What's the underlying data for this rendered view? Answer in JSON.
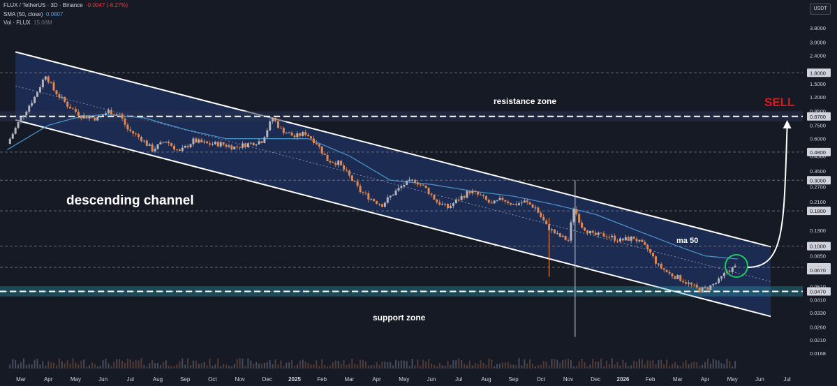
{
  "header": {
    "symbol_line": "FLUX / TetherUS · 3D · Binance",
    "change": "-0.0047 (-6.27%)",
    "sma_label": "SMA (50, close)",
    "sma_value": "0.0807",
    "vol_label": "Vol · FLUX",
    "vol_value": "15.08M"
  },
  "currency": "USDT",
  "colors": {
    "background": "#161a25",
    "channel_fill": "#1e3160",
    "channel_line": "#ffffff",
    "up_candle": "#b2b5be",
    "down_candle": "#e4864d",
    "ma_line": "#4a90c8",
    "sell": "#e0161b",
    "support_band": "#2aa3b5",
    "circle": "#22c55e",
    "price_tag": "#d1d4dc"
  },
  "chart_data": {
    "type": "candlestick",
    "title": "FLUX / TetherUS · 3D · Binance",
    "price_axis": {
      "scale": "log",
      "range": [
        0.013,
        4.8
      ],
      "tick_labels": [
        "3.8000",
        "3.0000",
        "2.4000",
        "1.8000",
        "1.5000",
        "1.2000",
        "0.9500",
        "0.8700",
        "0.7500",
        "0.6000",
        "0.4800",
        "0.4500",
        "0.3500",
        "0.3000",
        "0.2700",
        "0.2100",
        "0.1800",
        "0.1300",
        "0.1050",
        "0.1000",
        "0.0850",
        "0.0703",
        "0.0670",
        "0.0510",
        "0.0470",
        "0.0410",
        "0.0330",
        "0.0260",
        "0.0210",
        "0.0168"
      ],
      "tick_values": [
        3.8,
        3.0,
        2.4,
        1.8,
        1.5,
        1.2,
        0.95,
        0.87,
        0.75,
        0.6,
        0.48,
        0.45,
        0.35,
        0.3,
        0.27,
        0.21,
        0.18,
        0.13,
        0.105,
        0.1,
        0.085,
        0.0703,
        0.067,
        0.051,
        0.047,
        0.041,
        0.033,
        0.026,
        0.021,
        0.0168
      ],
      "highlighted": [
        "1.8000",
        "0.8700",
        "0.4800",
        "0.3000",
        "0.1800",
        "0.1000",
        "0.0703",
        "0.0670",
        "0.0470"
      ]
    },
    "time_axis": {
      "labels": [
        "Mar",
        "Apr",
        "May",
        "Jun",
        "Jul",
        "Aug",
        "Sep",
        "Oct",
        "Nov",
        "Dec",
        "2025",
        "Feb",
        "Mar",
        "Apr",
        "May",
        "Jun",
        "Jul",
        "Aug",
        "Sep",
        "Oct",
        "Nov",
        "Dec",
        "2026",
        "Feb",
        "Mar",
        "Apr",
        "May",
        "Jun",
        "Jul"
      ],
      "month_index": [
        0,
        1,
        2,
        3,
        4,
        5,
        6,
        7,
        8,
        9,
        10,
        11,
        12,
        13,
        14,
        15,
        16,
        17,
        18,
        19,
        20,
        21,
        22,
        23,
        24,
        25,
        26,
        27,
        28
      ]
    },
    "horizontal_levels": [
      1.8,
      0.87,
      0.48,
      0.3,
      0.18,
      0.1,
      0.0703,
      0.047
    ],
    "resistance_zone": 0.87,
    "support_zone": 0.047,
    "current_price": 0.0703,
    "channel": {
      "upper": [
        {
          "month": -0.2,
          "price": 2.55
        },
        {
          "month": 27.4,
          "price": 0.099
        }
      ],
      "lower": [
        {
          "month": -0.2,
          "price": 0.82
        },
        {
          "month": 27.4,
          "price": 0.031
        }
      ]
    },
    "price_path": [
      {
        "m": -0.5,
        "p": 0.55
      },
      {
        "m": 0.0,
        "p": 0.85
      },
      {
        "m": 0.5,
        "p": 1.2
      },
      {
        "m": 0.9,
        "p": 1.75
      },
      {
        "m": 1.2,
        "p": 1.35
      },
      {
        "m": 1.7,
        "p": 1.05
      },
      {
        "m": 2.2,
        "p": 0.88
      },
      {
        "m": 2.8,
        "p": 0.84
      },
      {
        "m": 3.2,
        "p": 0.95
      },
      {
        "m": 3.6,
        "p": 0.9
      },
      {
        "m": 3.9,
        "p": 0.7
      },
      {
        "m": 4.4,
        "p": 0.6
      },
      {
        "m": 4.8,
        "p": 0.5
      },
      {
        "m": 5.3,
        "p": 0.58
      },
      {
        "m": 5.8,
        "p": 0.48
      },
      {
        "m": 6.3,
        "p": 0.58
      },
      {
        "m": 6.8,
        "p": 0.55
      },
      {
        "m": 7.3,
        "p": 0.55
      },
      {
        "m": 7.8,
        "p": 0.52
      },
      {
        "m": 8.3,
        "p": 0.55
      },
      {
        "m": 8.8,
        "p": 0.58
      },
      {
        "m": 9.2,
        "p": 0.85
      },
      {
        "m": 9.5,
        "p": 0.7
      },
      {
        "m": 10.0,
        "p": 0.62
      },
      {
        "m": 10.4,
        "p": 0.66
      },
      {
        "m": 10.8,
        "p": 0.56
      },
      {
        "m": 11.2,
        "p": 0.42
      },
      {
        "m": 11.6,
        "p": 0.4
      },
      {
        "m": 12.0,
        "p": 0.32
      },
      {
        "m": 12.4,
        "p": 0.25
      },
      {
        "m": 12.8,
        "p": 0.22
      },
      {
        "m": 13.2,
        "p": 0.2
      },
      {
        "m": 13.6,
        "p": 0.24
      },
      {
        "m": 14.0,
        "p": 0.28
      },
      {
        "m": 14.4,
        "p": 0.3
      },
      {
        "m": 14.8,
        "p": 0.26
      },
      {
        "m": 15.2,
        "p": 0.21
      },
      {
        "m": 15.6,
        "p": 0.19
      },
      {
        "m": 16.0,
        "p": 0.22
      },
      {
        "m": 16.4,
        "p": 0.25
      },
      {
        "m": 16.8,
        "p": 0.23
      },
      {
        "m": 17.2,
        "p": 0.2
      },
      {
        "m": 17.6,
        "p": 0.22
      },
      {
        "m": 18.0,
        "p": 0.2
      },
      {
        "m": 18.4,
        "p": 0.21
      },
      {
        "m": 18.8,
        "p": 0.19
      },
      {
        "m": 19.2,
        "p": 0.14
      },
      {
        "m": 19.6,
        "p": 0.12
      },
      {
        "m": 20.0,
        "p": 0.11
      },
      {
        "m": 20.2,
        "p": 0.19
      },
      {
        "m": 20.5,
        "p": 0.14
      },
      {
        "m": 20.9,
        "p": 0.12
      },
      {
        "m": 21.4,
        "p": 0.12
      },
      {
        "m": 21.9,
        "p": 0.11
      },
      {
        "m": 22.4,
        "p": 0.115
      },
      {
        "m": 22.9,
        "p": 0.095
      },
      {
        "m": 23.3,
        "p": 0.072
      },
      {
        "m": 23.7,
        "p": 0.063
      },
      {
        "m": 24.1,
        "p": 0.058
      },
      {
        "m": 24.5,
        "p": 0.052
      },
      {
        "m": 24.8,
        "p": 0.048
      },
      {
        "m": 25.1,
        "p": 0.05
      },
      {
        "m": 25.5,
        "p": 0.056
      },
      {
        "m": 25.8,
        "p": 0.066
      },
      {
        "m": 26.1,
        "p": 0.0703
      }
    ],
    "ma50_path": [
      {
        "m": -0.5,
        "p": 0.5
      },
      {
        "m": 1.0,
        "p": 0.75
      },
      {
        "m": 2.0,
        "p": 0.85
      },
      {
        "m": 3.0,
        "p": 0.9
      },
      {
        "m": 4.5,
        "p": 0.85
      },
      {
        "m": 6.0,
        "p": 0.7
      },
      {
        "m": 7.5,
        "p": 0.6
      },
      {
        "m": 9.0,
        "p": 0.6
      },
      {
        "m": 10.5,
        "p": 0.6
      },
      {
        "m": 12.0,
        "p": 0.45
      },
      {
        "m": 13.5,
        "p": 0.3
      },
      {
        "m": 15.0,
        "p": 0.28
      },
      {
        "m": 16.5,
        "p": 0.25
      },
      {
        "m": 18.0,
        "p": 0.23
      },
      {
        "m": 19.5,
        "p": 0.2
      },
      {
        "m": 21.0,
        "p": 0.17
      },
      {
        "m": 22.5,
        "p": 0.13
      },
      {
        "m": 24.0,
        "p": 0.1
      },
      {
        "m": 25.0,
        "p": 0.085
      },
      {
        "m": 26.2,
        "p": 0.0807
      }
    ],
    "wicks": [
      {
        "m": 20.25,
        "low": 0.022,
        "high": 0.3
      },
      {
        "m": 19.3,
        "low": 0.06,
        "high": 0.16
      }
    ],
    "annotations": [
      "descending channel",
      "resistance zone",
      "support zone",
      "ma 50",
      "SELL"
    ],
    "projection": {
      "from": {
        "m": 26.3,
        "p": 0.0703
      },
      "to": {
        "m": 28.0,
        "p": 0.8
      }
    }
  }
}
